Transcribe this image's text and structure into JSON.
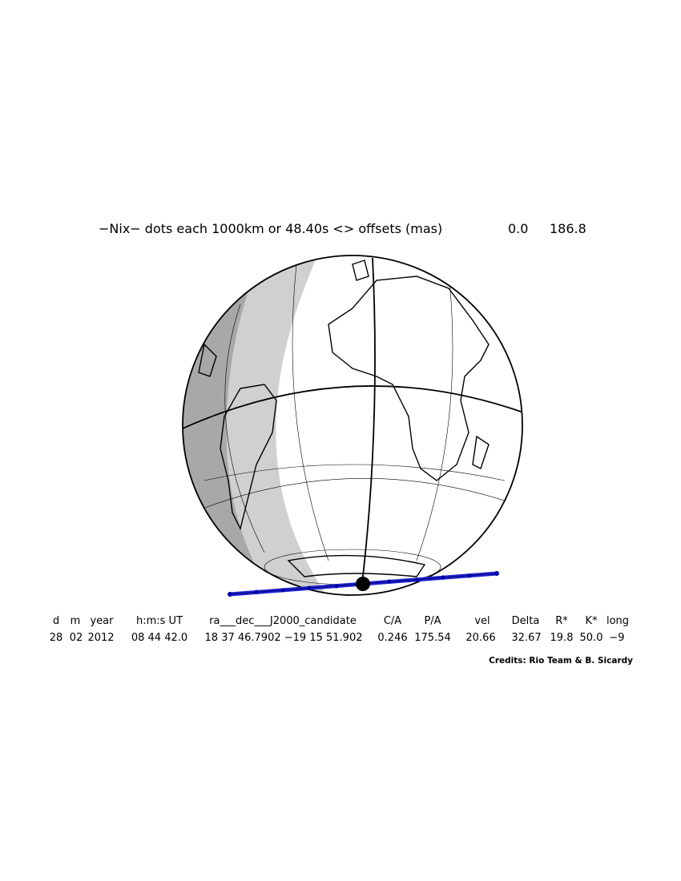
{
  "header": {
    "title": "−Nix− dots each 1000km or 48.40s <> offsets (mas)",
    "offsets": [
      "0.0",
      "186.8"
    ]
  },
  "table": {
    "headers": [
      "d",
      "m",
      "year",
      "h:m:s UT",
      "ra___dec___J2000_candidate",
      "C/A",
      "P/A",
      "vel",
      "Delta",
      "R*",
      "K*",
      "long"
    ],
    "values": [
      "28",
      "02",
      "2012",
      "08 44 42.0",
      "18 37 46.7902 −19 15 51.902",
      "0.246",
      "175.54",
      "20.66",
      "32.67",
      "19.8",
      "50.0",
      "−9"
    ]
  },
  "credits": "Credits: Rio Team & B. Sicardy"
}
